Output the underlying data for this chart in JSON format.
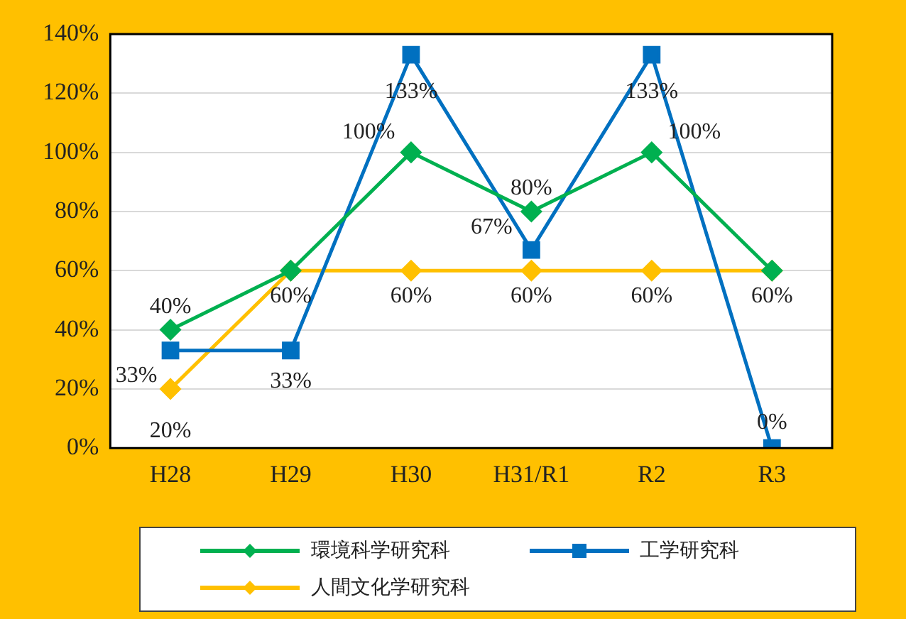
{
  "chart_data": {
    "type": "line",
    "categories": [
      "H28",
      "H29",
      "H30",
      "H31/R1",
      "R2",
      "R3"
    ],
    "series": [
      {
        "name": "環境科学研究科",
        "color": "#00b050",
        "marker": "diamond",
        "values": [
          40,
          60,
          100,
          80,
          100,
          60
        ],
        "value_labels": [
          "40%",
          null,
          "100%",
          "80%",
          "100%",
          null
        ]
      },
      {
        "name": "工学研究科",
        "color": "#0070c0",
        "marker": "square",
        "values": [
          33,
          33,
          133,
          67,
          133,
          0
        ],
        "value_labels": [
          "33%",
          "33%",
          "133%",
          "67%",
          "133%",
          "0%"
        ]
      },
      {
        "name": "人間文化学研究科",
        "color": "#ffc000",
        "marker": "diamond",
        "values": [
          20,
          60,
          60,
          60,
          60,
          60
        ],
        "value_labels": [
          "20%",
          "60%",
          "60%",
          "60%",
          "60%",
          "60%"
        ]
      }
    ],
    "ylim": [
      0,
      140
    ],
    "yticks": [
      {
        "value": 0,
        "label": "0%"
      },
      {
        "value": 20,
        "label": "20%"
      },
      {
        "value": 40,
        "label": "40%"
      },
      {
        "value": 60,
        "label": "60%"
      },
      {
        "value": 80,
        "label": "80%"
      },
      {
        "value": 100,
        "label": "100%"
      },
      {
        "value": 120,
        "label": "120%"
      },
      {
        "value": 140,
        "label": "140%"
      }
    ],
    "grid": "y",
    "legend": "bottom",
    "line_style": "solid"
  }
}
